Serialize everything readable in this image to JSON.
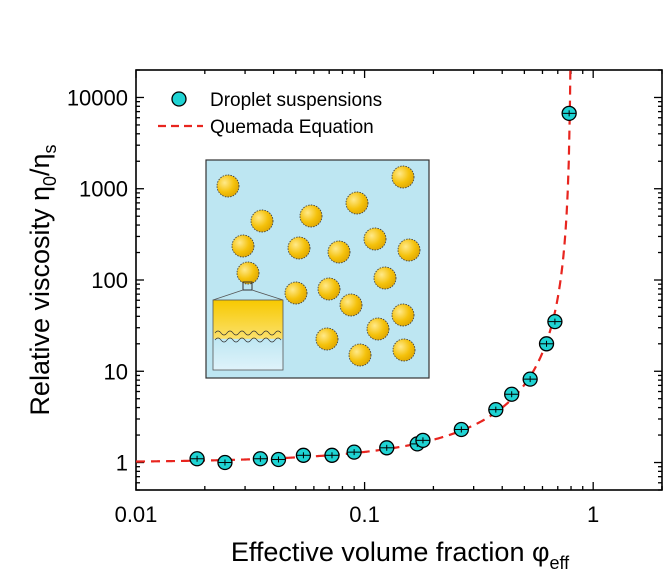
{
  "chart_data": {
    "type": "scatter",
    "xlabel": "Effective volume fraction φ",
    "xlabel_sub": "eff",
    "ylabel": "Relative viscosity η",
    "ylabel_sub0": "0",
    "ylabel_mid": "/η",
    "ylabel_sub1": "s",
    "xscale": "log",
    "yscale": "log",
    "xlim": [
      0.01,
      2
    ],
    "ylim": [
      0.5,
      20000
    ],
    "x_ticks": [
      {
        "value": 0.01,
        "label": "0.01"
      },
      {
        "value": 0.1,
        "label": "0.1"
      },
      {
        "value": 1,
        "label": "1"
      }
    ],
    "y_ticks": [
      {
        "value": 1,
        "label": "1"
      },
      {
        "value": 10,
        "label": "10"
      },
      {
        "value": 100,
        "label": "100"
      },
      {
        "value": 1000,
        "label": "1000"
      },
      {
        "value": 10000,
        "label": "10000"
      }
    ],
    "legend_position": "top-left",
    "series": [
      {
        "name": "Droplet suspensions",
        "kind": "markers",
        "color": "#1fd3d3",
        "x": [
          0.0185,
          0.0245,
          0.035,
          0.042,
          0.054,
          0.072,
          0.09,
          0.125,
          0.17,
          0.18,
          0.265,
          0.375,
          0.44,
          0.53,
          0.625,
          0.68,
          0.785
        ],
        "y": [
          1.1,
          1.0,
          1.1,
          1.08,
          1.2,
          1.2,
          1.3,
          1.45,
          1.6,
          1.75,
          2.3,
          3.8,
          5.6,
          8.2,
          20,
          35,
          6700
        ]
      },
      {
        "name": "Quemada Equation",
        "kind": "dashed-line",
        "color": "#e8251f",
        "phi_max": 0.8,
        "equation": "(1 - phi/phi_max)^-2"
      }
    ]
  },
  "inset": {
    "description_icon": "droplet-suspension-schematic",
    "background_color": "#bde6f2",
    "droplet_color": "#f6c90e",
    "droplet_positions_note": "schematic"
  }
}
